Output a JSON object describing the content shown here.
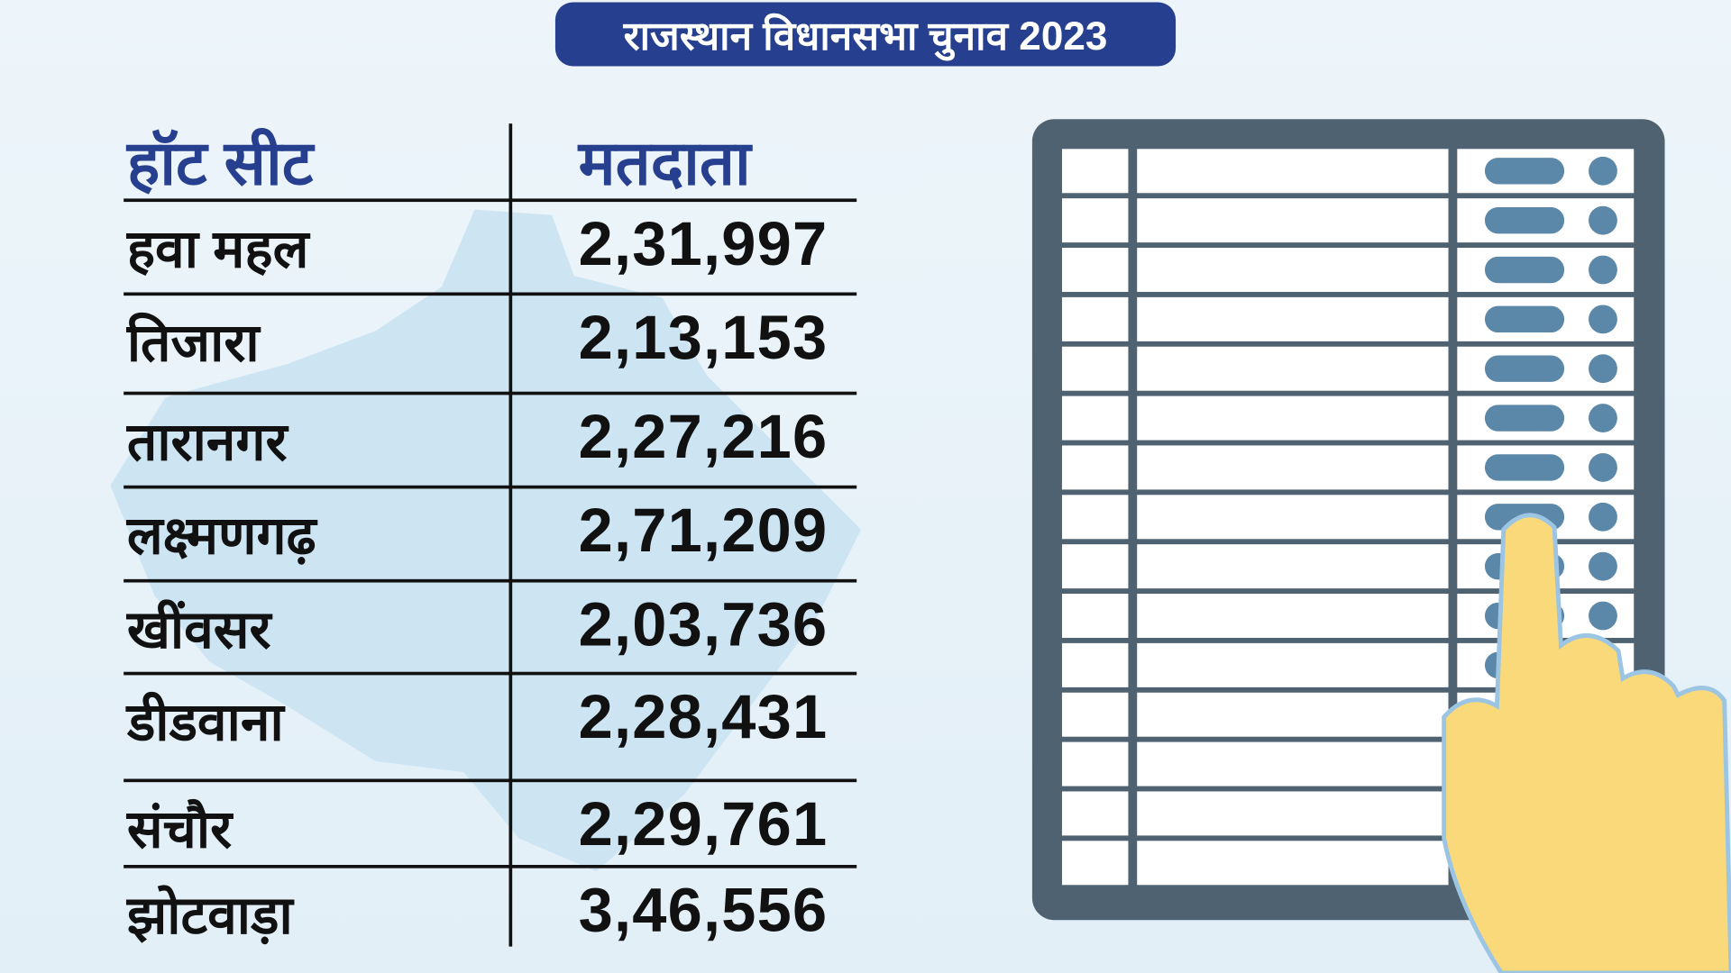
{
  "title": "राजस्थान विधानसभा चुनाव 2023",
  "table": {
    "headers": [
      "हॉट सीट",
      "मतदाता"
    ],
    "rows": [
      {
        "seat": "हवा महल",
        "voters": "2,31,997"
      },
      {
        "seat": "तिजारा",
        "voters": "2,13,153"
      },
      {
        "seat": "तारानगर",
        "voters": "2,27,216"
      },
      {
        "seat": "लक्ष्मणगढ़",
        "voters": "2,71,209"
      },
      {
        "seat": "खींवसर",
        "voters": "2,03,736"
      },
      {
        "seat": "डीडवाना",
        "voters": "2,28,431"
      },
      {
        "seat": "संचौर",
        "voters": "2,29,761"
      },
      {
        "seat": "झोटवाड़ा",
        "voters": "3,46,556"
      }
    ]
  },
  "colors": {
    "title_bg": "#263f8f",
    "header_text": "#263f8f",
    "evm_body": "#4f6272",
    "evm_button": "#5b87a8",
    "hand": "#f9d97a",
    "map": "#cde5f3"
  },
  "icons": [
    "rajasthan-map-silhouette",
    "evm-voting-machine-illustration",
    "pointing-hand-icon"
  ]
}
